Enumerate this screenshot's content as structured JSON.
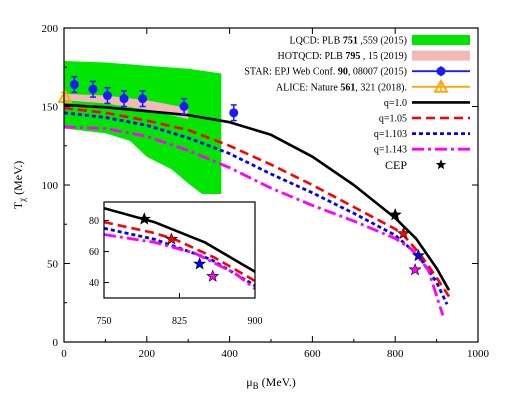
{
  "chart_data": {
    "type": "line",
    "xlabel": "μB (MeV.)",
    "ylabel": "Tχ (MeV.)",
    "xlabel_parts": [
      "μ",
      "B",
      " (MeV.)"
    ],
    "ylabel_parts": [
      "T",
      "χ",
      " (MeV.)"
    ],
    "xlim": [
      0,
      1000
    ],
    "ylim": [
      0,
      200
    ],
    "xticks": [
      0,
      200,
      400,
      600,
      800,
      1000
    ],
    "yticks": [
      0,
      50,
      100,
      150,
      200
    ],
    "grid": false,
    "legend_position": "top-right",
    "bands": [
      {
        "name": "LQCD",
        "legend": {
          "pre": "LQCD: PLB ",
          "bold": "751",
          "post": " ,559 (2015)"
        },
        "color": "#00e600",
        "upper": [
          [
            0,
            179
          ],
          [
            100,
            178
          ],
          [
            200,
            176
          ],
          [
            300,
            174
          ],
          [
            380,
            171
          ]
        ],
        "lower": [
          [
            0,
            136
          ],
          [
            100,
            133
          ],
          [
            160,
            128
          ],
          [
            200,
            118
          ],
          [
            260,
            110
          ],
          [
            300,
            101
          ],
          [
            340,
            93
          ],
          [
            380,
            86
          ]
        ]
      },
      {
        "name": "HOTQCD",
        "legend": {
          "pre": "HOTQCD: PLB ",
          "bold": "795",
          "post": " , 15 (2019)"
        },
        "color": "#f5b8b8",
        "upper": [
          [
            0,
            158
          ],
          [
            100,
            157
          ],
          [
            200,
            154
          ],
          [
            300,
            149
          ]
        ],
        "lower": [
          [
            0,
            154
          ],
          [
            100,
            152
          ],
          [
            200,
            148
          ],
          [
            300,
            142
          ]
        ]
      }
    ],
    "points": [
      {
        "name": "STAR",
        "legend": {
          "pre": "STAR: EPJ Web Conf. ",
          "bold": "90",
          "post": ", 08007 (2015)"
        },
        "color": "#1a1aff",
        "marker": "circle",
        "data": [
          {
            "x": 25,
            "y": 164,
            "yerr": 5
          },
          {
            "x": 70,
            "y": 161,
            "yerr": 5
          },
          {
            "x": 105,
            "y": 157,
            "yerr": 5
          },
          {
            "x": 145,
            "y": 155,
            "yerr": 5
          },
          {
            "x": 190,
            "y": 155,
            "yerr": 5
          },
          {
            "x": 290,
            "y": 150,
            "yerr": 5
          },
          {
            "x": 410,
            "y": 146,
            "yerr": 5
          }
        ]
      },
      {
        "name": "ALICE",
        "legend": {
          "pre": "ALICE: Nature ",
          "bold": "561",
          "post": ", 321 (2018)."
        },
        "color": "#ffa500",
        "marker": "triangle",
        "data": [
          {
            "x": 0,
            "y": 156,
            "yerr": 3
          }
        ]
      }
    ],
    "series": [
      {
        "name": "q=1.0",
        "color": "#000000",
        "dash": "",
        "width": 2.6,
        "x": [
          0,
          100,
          200,
          300,
          400,
          500,
          600,
          700,
          800,
          850,
          900,
          930
        ],
        "y": [
          151,
          149.5,
          147,
          144.5,
          140,
          132,
          118,
          100,
          79,
          66,
          47,
          33
        ]
      },
      {
        "name": "q=1.05",
        "color": "#ff0000",
        "dash": "9,5",
        "width": 2.6,
        "x": [
          0,
          100,
          200,
          300,
          400,
          500,
          600,
          700,
          800,
          820,
          860,
          900,
          930
        ],
        "y": [
          149,
          146,
          141,
          135,
          125,
          113,
          100,
          86,
          72,
          68,
          56,
          41,
          29
        ]
      },
      {
        "name": "q=1.103",
        "color": "#0000ff",
        "dash": "4,3",
        "width": 2.8,
        "x": [
          0,
          100,
          200,
          300,
          400,
          500,
          600,
          700,
          800,
          856,
          900,
          925
        ],
        "y": [
          146,
          143,
          138,
          130,
          120,
          107,
          95,
          82,
          68,
          55,
          38,
          24
        ]
      },
      {
        "name": "q=1.143",
        "color": "#ff00ff",
        "dash": "12,4,3,4",
        "width": 2.8,
        "x": [
          0,
          100,
          200,
          300,
          400,
          500,
          600,
          700,
          800,
          840,
          880,
          915
        ],
        "y": [
          137,
          136,
          131,
          122,
          111,
          98,
          87,
          77,
          66,
          59,
          46,
          17
        ]
      }
    ],
    "cep": {
      "label": "CEP",
      "marker": "star",
      "points": [
        {
          "x": 800,
          "y": 81,
          "color": "#000000"
        },
        {
          "x": 820,
          "y": 69,
          "color": "#ff0000"
        },
        {
          "x": 856,
          "y": 55,
          "color": "#0000ff"
        },
        {
          "x": 848,
          "y": 46,
          "color": "#ff00ff"
        }
      ]
    },
    "inset": {
      "xlim": [
        750,
        900
      ],
      "ylim": [
        30,
        92
      ],
      "xticks": [
        750,
        825,
        900
      ],
      "yticks": [
        40,
        60,
        80
      ],
      "series": [
        {
          "name": "q=1.0",
          "x": [
            750,
            800,
            850,
            900
          ],
          "y": [
            88,
            79,
            66,
            47
          ]
        },
        {
          "name": "q=1.05",
          "x": [
            750,
            800,
            820,
            860,
            900
          ],
          "y": [
            79,
            72,
            68,
            56,
            41
          ]
        },
        {
          "name": "q=1.103",
          "x": [
            750,
            800,
            856,
            900
          ],
          "y": [
            75,
            68,
            55,
            38
          ]
        },
        {
          "name": "q=1.143",
          "x": [
            750,
            800,
            840,
            880,
            900
          ],
          "y": [
            71,
            66,
            59,
            46,
            36
          ]
        }
      ],
      "cep_points": [
        {
          "x": 790,
          "y": 81,
          "color": "#000000"
        },
        {
          "x": 817,
          "y": 68,
          "color": "#ff0000"
        },
        {
          "x": 845,
          "y": 52,
          "color": "#0000ff"
        },
        {
          "x": 858,
          "y": 44,
          "color": "#ff00ff"
        }
      ]
    }
  }
}
